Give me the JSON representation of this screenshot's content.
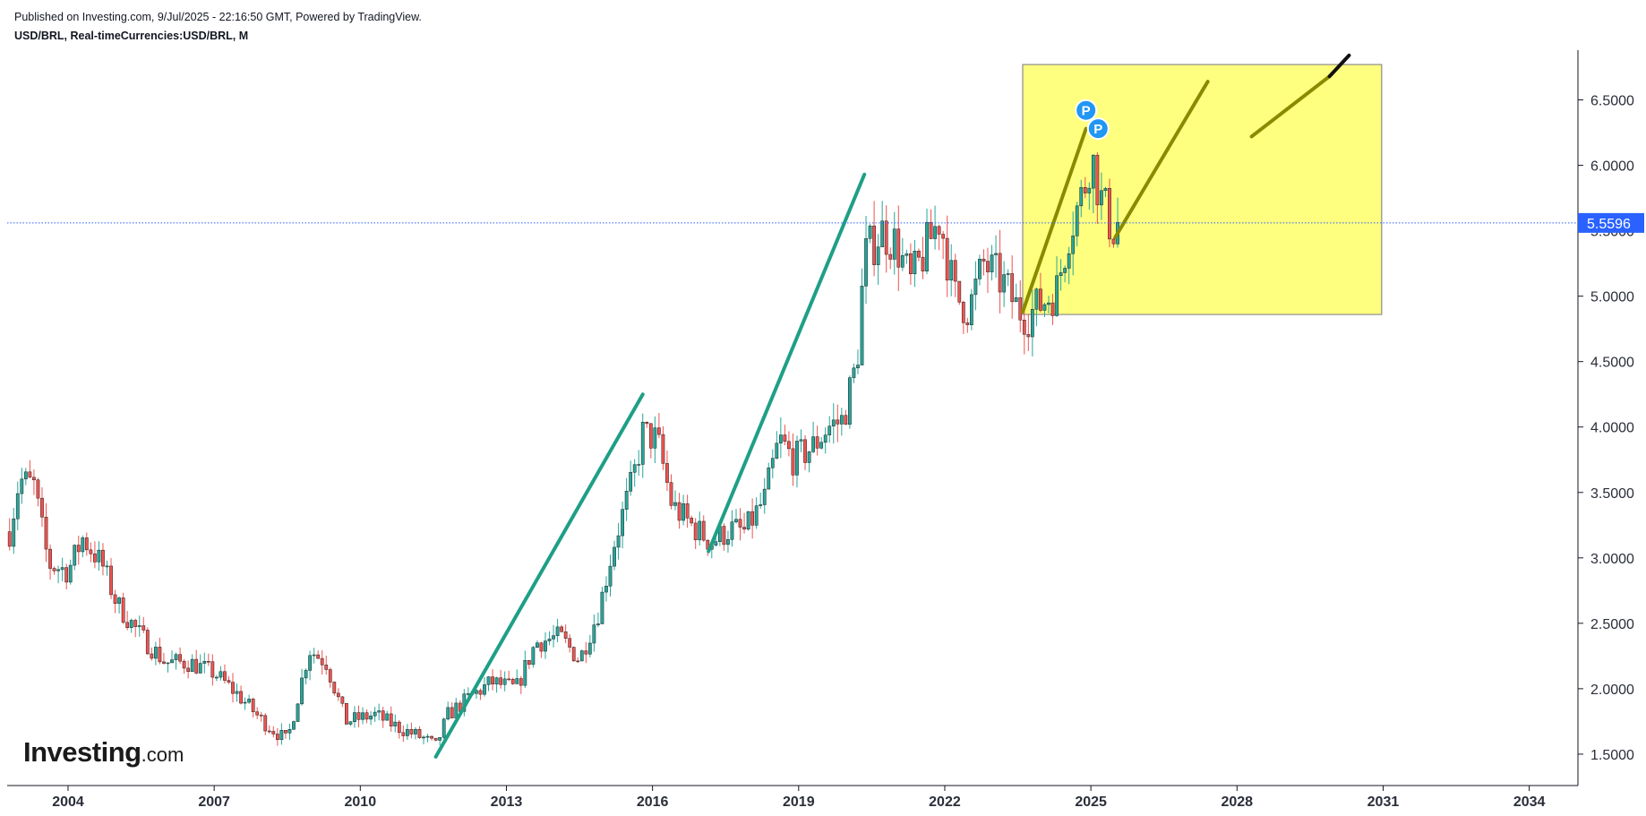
{
  "header": {
    "published": "Published on Investing.com, 9/Jul/2025 - 22:16:50 GMT, Powered by TradingView.",
    "symbol": "USD/BRL, Real-timeCurrencies:USD/BRL, M"
  },
  "logo": {
    "main": "Investing",
    "suffix": ".com"
  },
  "colors": {
    "up": "#26a69a",
    "down": "#ef5350",
    "trend": "#1e9f86",
    "olive": "#8a8a00",
    "box_fill": "#ffff7f",
    "box_stroke": "#8c8c8c",
    "price_line": "#2962ff",
    "price_label_bg": "#2962ff",
    "pivot": "#2196f3"
  },
  "chart_data": {
    "type": "candlestick",
    "interval": "monthly",
    "title": "",
    "xlabel": "",
    "ylabel": "",
    "x_range": [
      2002.75,
      2035.0
    ],
    "ylim": [
      1.26,
      6.88
    ],
    "y_ticks": [
      "1.5000",
      "2.0000",
      "2.5000",
      "3.0000",
      "3.5000",
      "4.0000",
      "4.5000",
      "5.0000",
      "5.5000",
      "6.0000",
      "6.5000"
    ],
    "y_tick_values": [
      1.5,
      2.0,
      2.5,
      3.0,
      3.5,
      4.0,
      4.5,
      5.0,
      5.5,
      6.0,
      6.5
    ],
    "x_ticks": [
      "2004",
      "2007",
      "2010",
      "2013",
      "2016",
      "2019",
      "2022",
      "2025",
      "2028",
      "2031",
      "2034"
    ],
    "x_tick_values": [
      2004,
      2007,
      2010,
      2013,
      2016,
      2019,
      2022,
      2025,
      2028,
      2031,
      2034
    ],
    "last_price": 5.5596,
    "last_price_label": "5.5596",
    "price_anchors": [
      [
        2002.8,
        3.2
      ],
      [
        2003.0,
        3.6
      ],
      [
        2003.3,
        3.55
      ],
      [
        2003.6,
        2.95
      ],
      [
        2004.0,
        2.9
      ],
      [
        2004.3,
        3.15
      ],
      [
        2004.7,
        2.95
      ],
      [
        2005.0,
        2.65
      ],
      [
        2005.5,
        2.4
      ],
      [
        2006.0,
        2.2
      ],
      [
        2006.5,
        2.2
      ],
      [
        2007.0,
        2.12
      ],
      [
        2007.5,
        1.95
      ],
      [
        2008.0,
        1.75
      ],
      [
        2008.5,
        1.6
      ],
      [
        2008.95,
        2.3
      ],
      [
        2009.3,
        2.2
      ],
      [
        2009.7,
        1.75
      ],
      [
        2010.3,
        1.8
      ],
      [
        2010.8,
        1.7
      ],
      [
        2011.3,
        1.62
      ],
      [
        2011.55,
        1.56
      ],
      [
        2011.8,
        1.8
      ],
      [
        2012.3,
        1.95
      ],
      [
        2012.7,
        2.05
      ],
      [
        2013.2,
        2.0
      ],
      [
        2013.6,
        2.35
      ],
      [
        2014.1,
        2.4
      ],
      [
        2014.5,
        2.22
      ],
      [
        2014.9,
        2.6
      ],
      [
        2015.2,
        3.1
      ],
      [
        2015.6,
        3.6
      ],
      [
        2015.8,
        3.95
      ],
      [
        2016.1,
        3.9
      ],
      [
        2016.4,
        3.4
      ],
      [
        2016.8,
        3.25
      ],
      [
        2017.2,
        3.12
      ],
      [
        2017.6,
        3.22
      ],
      [
        2017.9,
        3.2
      ],
      [
        2018.3,
        3.45
      ],
      [
        2018.6,
        3.9
      ],
      [
        2018.9,
        3.75
      ],
      [
        2019.3,
        3.85
      ],
      [
        2019.6,
        4.0
      ],
      [
        2019.9,
        4.05
      ],
      [
        2020.2,
        4.5
      ],
      [
        2020.35,
        5.3
      ],
      [
        2020.7,
        5.5
      ],
      [
        2021.0,
        5.4
      ],
      [
        2021.3,
        5.1
      ],
      [
        2021.9,
        5.6
      ],
      [
        2022.2,
        5.0
      ],
      [
        2022.5,
        4.9
      ],
      [
        2022.8,
        5.25
      ],
      [
        2023.2,
        5.1
      ],
      [
        2023.5,
        4.9
      ],
      [
        2023.7,
        4.85
      ],
      [
        2024.0,
        4.95
      ],
      [
        2024.3,
        5.05
      ],
      [
        2024.55,
        5.5
      ],
      [
        2024.85,
        5.8
      ],
      [
        2025.0,
        6.1
      ],
      [
        2025.2,
        5.75
      ],
      [
        2025.45,
        5.5
      ],
      [
        2025.52,
        5.56
      ]
    ],
    "trend_lines": [
      {
        "color_key": "trend",
        "points": [
          [
            2011.55,
            1.48
          ],
          [
            2015.8,
            4.25
          ]
        ]
      },
      {
        "color_key": "trend",
        "points": [
          [
            2017.15,
            3.05
          ],
          [
            2020.35,
            5.93
          ]
        ]
      },
      {
        "color_key": "olive",
        "points": [
          [
            2023.6,
            4.88
          ],
          [
            2024.9,
            6.28
          ]
        ]
      },
      {
        "color_key": "olive",
        "points": [
          [
            2025.5,
            5.45
          ],
          [
            2027.4,
            6.64
          ]
        ]
      },
      {
        "color_key": "olive",
        "points": [
          [
            2028.3,
            6.22
          ],
          [
            2029.9,
            6.68
          ]
        ]
      },
      {
        "color_key": "black",
        "points": [
          [
            2029.9,
            6.68
          ],
          [
            2030.3,
            6.84
          ]
        ]
      }
    ],
    "projection_box": {
      "x0": 2023.6,
      "x1": 2030.97,
      "y0": 4.86,
      "y1": 6.77
    },
    "pivot_markers": [
      {
        "label": "P",
        "x": 2024.9,
        "y": 6.42
      },
      {
        "label": "P",
        "x": 2025.15,
        "y": 6.28
      }
    ]
  }
}
